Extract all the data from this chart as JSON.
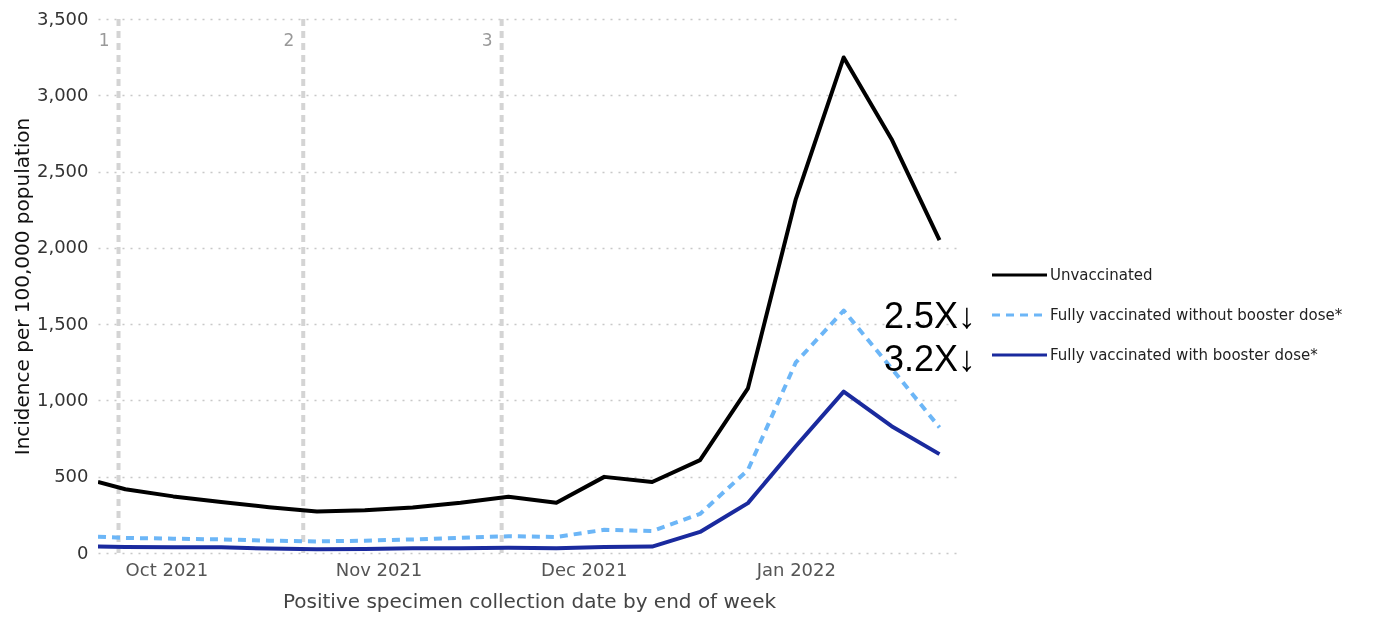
{
  "chart_data": {
    "type": "line",
    "xlabel": "Positive specimen collection date by end of week",
    "ylabel": "Incidence per 100,000 population",
    "x": [
      "2021-09-21",
      "2021-09-25",
      "2021-10-02",
      "2021-10-09",
      "2021-10-16",
      "2021-10-23",
      "2021-10-30",
      "2021-11-06",
      "2021-11-13",
      "2021-11-20",
      "2021-11-27",
      "2021-12-04",
      "2021-12-11",
      "2021-12-18",
      "2021-12-25",
      "2022-01-01",
      "2022-01-08",
      "2022-01-15",
      "2022-01-22"
    ],
    "series": [
      {
        "name": "Unvaccinated",
        "color": "#000000",
        "line_style": "solid",
        "values": [
          465,
          418,
          371,
          334,
          300,
          272,
          280,
          298,
          329,
          368,
          329,
          499,
          465,
          609,
          1079,
          2320,
          3248,
          2712,
          2051
        ]
      },
      {
        "name": "Fully vaccinated without booster dose*",
        "color": "#6cb6f7",
        "line_style": "dashed",
        "values": [
          107,
          99,
          94,
          89,
          81,
          76,
          81,
          89,
          99,
          110,
          105,
          152,
          144,
          256,
          544,
          1249,
          1589,
          1210,
          823
        ]
      },
      {
        "name": "Fully vaccinated with booster dose*",
        "color": "#1a2a9e",
        "line_style": "solid",
        "values": [
          42,
          39,
          37,
          37,
          29,
          24,
          26,
          31,
          31,
          34,
          31,
          39,
          42,
          138,
          327,
          700,
          1058,
          831,
          648
        ]
      }
    ],
    "xlim": [
      "2021-09-21",
      "2022-01-25"
    ],
    "xticks": [
      {
        "value": "2021-10-01",
        "label": "Oct 2021"
      },
      {
        "value": "2021-11-01",
        "label": "Nov 2021"
      },
      {
        "value": "2021-12-01",
        "label": "Dec 2021"
      },
      {
        "value": "2022-01-01",
        "label": "Jan 2022"
      }
    ],
    "ylim": [
      0,
      3500
    ],
    "yticks": [
      {
        "value": 0,
        "label": "0"
      },
      {
        "value": 500,
        "label": "500"
      },
      {
        "value": 1000,
        "label": "1,000"
      },
      {
        "value": 1500,
        "label": "1,500"
      },
      {
        "value": 2000,
        "label": "2,000"
      },
      {
        "value": 2500,
        "label": "2,500"
      },
      {
        "value": 3000,
        "label": "3,000"
      },
      {
        "value": 3500,
        "label": "3,500"
      }
    ],
    "grid": "y",
    "legend": "right",
    "ref_lines": [
      {
        "axis": "x",
        "value": "2021-09-24",
        "label": "1",
        "color": "#d4d4d4",
        "line_style": "dashed"
      },
      {
        "axis": "x",
        "value": "2021-10-21",
        "label": "2",
        "color": "#d4d4d4",
        "line_style": "dashed"
      },
      {
        "axis": "x",
        "value": "2021-11-19",
        "label": "3",
        "color": "#d4d4d4",
        "line_style": "dashed"
      }
    ],
    "annotations": [
      "2.5X↓",
      "3.2X↓"
    ]
  }
}
